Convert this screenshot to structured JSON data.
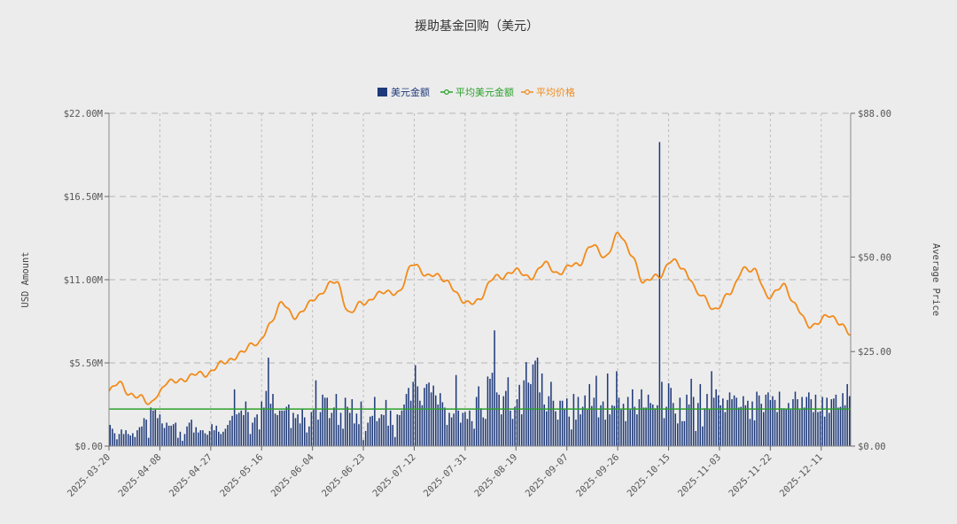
{
  "chart_data": {
    "type": "bar+line",
    "title": "援助基金回购（美元）",
    "legend": [
      {
        "name": "美元金额",
        "kind": "bar",
        "color": "#1f3a7a"
      },
      {
        "name": "平均美元金额",
        "kind": "line",
        "color": "#2ca02c"
      },
      {
        "name": "平均价格",
        "kind": "line",
        "color": "#f28b1a"
      }
    ],
    "ylabel_left": "USD Amount",
    "ylabel_right": "Average Price",
    "left_ticks": [
      "$0.00",
      "$5.50M",
      "$11.00M",
      "$16.50M",
      "$22.00M"
    ],
    "right_ticks": [
      "$0.00",
      "$25.00",
      "$50.00",
      "$88.00"
    ],
    "ylim_left": [
      0,
      22
    ],
    "ylim_right": [
      0,
      88
    ],
    "x_ticks": [
      "2025-03-20",
      "2025-04-08",
      "2025-04-27",
      "2025-05-16",
      "2025-06-04",
      "2025-06-23",
      "2025-07-12",
      "2025-07-31",
      "2025-08-19",
      "2025-09-07",
      "2025-09-26",
      "2025-10-15",
      "2025-11-03",
      "2025-11-22",
      "2025-12-11"
    ],
    "start_date": "2025-03-20",
    "end_date": "2025-12-22",
    "avg_usd_amount_m": 2.45,
    "price_anchors": [
      [
        0,
        14.5
      ],
      [
        4,
        16.5
      ],
      [
        8,
        14.0
      ],
      [
        12,
        12.5
      ],
      [
        15,
        11.0
      ],
      [
        18,
        14.0
      ],
      [
        22,
        16.5
      ],
      [
        28,
        18.0
      ],
      [
        35,
        19.0
      ],
      [
        42,
        21.5
      ],
      [
        50,
        25.0
      ],
      [
        55,
        27.0
      ],
      [
        60,
        32.0
      ],
      [
        65,
        38.0
      ],
      [
        70,
        34.0
      ],
      [
        78,
        40.0
      ],
      [
        85,
        43.5
      ],
      [
        90,
        35.0
      ],
      [
        95,
        38.0
      ],
      [
        100,
        40.0
      ],
      [
        108,
        41.0
      ],
      [
        114,
        48.0
      ],
      [
        120,
        45.0
      ],
      [
        126,
        44.0
      ],
      [
        133,
        37.5
      ],
      [
        138,
        39.0
      ],
      [
        145,
        45.0
      ],
      [
        152,
        46.0
      ],
      [
        158,
        45.0
      ],
      [
        163,
        48.0
      ],
      [
        168,
        46.0
      ],
      [
        175,
        48.0
      ],
      [
        180,
        53.0
      ],
      [
        185,
        50.0
      ],
      [
        190,
        56.0
      ],
      [
        195,
        51.0
      ],
      [
        200,
        43.0
      ],
      [
        205,
        45.0
      ],
      [
        210,
        49.0
      ],
      [
        214,
        47.0
      ],
      [
        217,
        45.0
      ],
      [
        220,
        40.0
      ],
      [
        226,
        36.5
      ],
      [
        232,
        40.0
      ],
      [
        237,
        47.5
      ],
      [
        241,
        46.0
      ],
      [
        246,
        40.0
      ],
      [
        252,
        42.0
      ],
      [
        256,
        38.0
      ],
      [
        262,
        31.0
      ],
      [
        268,
        35.0
      ],
      [
        273,
        32.0
      ],
      [
        278,
        30.0
      ],
      [
        280,
        28.5
      ]
    ],
    "usd_amount_m": [
      1.4,
      1.15,
      0.85,
      0.45,
      0.8,
      1.1,
      0.8,
      1.05,
      0.8,
      0.7,
      0.85,
      0.6,
      1.05,
      1.25,
      1.3,
      1.85,
      1.75,
      0.55,
      2.55,
      2.35,
      2.4,
      1.85,
      2.1,
      1.5,
      1.2,
      1.55,
      1.35,
      1.35,
      1.45,
      1.55,
      0.55,
      0.95,
      0.35,
      0.8,
      1.3,
      1.55,
      1.75,
      0.9,
      1.25,
      0.9,
      1.05,
      1.05,
      0.85,
      0.75,
      1.0,
      1.45,
      1.05,
      1.35,
      0.95,
      0.8,
      0.95,
      1.15,
      1.4,
      1.7,
      2.0,
      3.75,
      2.1,
      2.2,
      2.35,
      2.05,
      2.95,
      2.25,
      0.8,
      1.55,
      1.9,
      2.1,
      1.1,
      2.95,
      2.55,
      3.65,
      5.85,
      2.8,
      3.45,
      2.15,
      2.05,
      2.35,
      2.35,
      2.35,
      2.6,
      2.75,
      1.2,
      2.2,
      1.85,
      2.1,
      1.5,
      2.45,
      1.9,
      0.9,
      1.3,
      2.25,
      2.4,
      4.35,
      1.75,
      2.25,
      3.4,
      3.2,
      3.2,
      1.85,
      2.2,
      2.55,
      3.45,
      1.4,
      2.2,
      1.15,
      3.2,
      2.6,
      2.2,
      3.1,
      1.5,
      2.15,
      1.45,
      2.95,
      0.4,
      1.0,
      1.55,
      1.95,
      2.0,
      3.25,
      1.65,
      1.85,
      2.1,
      2.05,
      3.05,
      1.35,
      2.35,
      1.4,
      0.6,
      2.1,
      2.05,
      2.35,
      2.75,
      3.45,
      3.85,
      3.0,
      4.25,
      5.35,
      3.95,
      3.0,
      2.7,
      3.85,
      4.1,
      4.2,
      3.55,
      4.0,
      3.35,
      2.75,
      3.5,
      2.9,
      2.55,
      1.4,
      2.2,
      1.9,
      2.15,
      4.7,
      2.35,
      1.55,
      2.2,
      2.25,
      1.8,
      2.35,
      1.65,
      1.15,
      3.25,
      3.95,
      2.5,
      1.9,
      1.8,
      4.6,
      4.45,
      4.85,
      7.65,
      3.55,
      3.4,
      2.1,
      3.3,
      3.65,
      4.55,
      2.35,
      1.8,
      2.6,
      3.1,
      4.05,
      2.1,
      4.35,
      5.55,
      4.2,
      4.1,
      5.4,
      5.65,
      5.85,
      3.55,
      4.8,
      2.75,
      2.3,
      3.3,
      4.25,
      3.0,
      2.3,
      1.75,
      3.0,
      3.0,
      2.45,
      3.15,
      1.95,
      1.1,
      3.45,
      1.75,
      3.25,
      2.1,
      2.6,
      3.35,
      2.4,
      4.1,
      2.65,
      3.2,
      4.65,
      1.9,
      2.7,
      2.95,
      1.75,
      4.8,
      2.1,
      2.7,
      2.65,
      4.95,
      3.2,
      2.4,
      2.8,
      1.65,
      3.25,
      2.4,
      3.75,
      2.6,
      2.1,
      3.1,
      3.75,
      2.55,
      2.55,
      3.4,
      2.85,
      2.75,
      2.5,
      2.7,
      1.6,
      4.25,
      1.85,
      2.6,
      4.15,
      3.85,
      2.85,
      2.15,
      1.5,
      3.2,
      1.65,
      1.65,
      3.4,
      2.75,
      4.45,
      3.25,
      1.0,
      2.85,
      4.1,
      1.3,
      2.5,
      3.45,
      2.4,
      4.95,
      3.2,
      3.75,
      3.35,
      2.7,
      3.15,
      2.25,
      3.05,
      3.55,
      3.1,
      3.35,
      3.2,
      2.55,
      2.6,
      3.3,
      2.7,
      3.0,
      1.8,
      2.95,
      1.7,
      3.6,
      3.35,
      2.8,
      2.25,
      3.4,
      3.55,
      3.05,
      3.3,
      3.05,
      2.25,
      3.6,
      2.5,
      2.5,
      2.45,
      2.85,
      2.4,
      3.1,
      3.6,
      3.1,
      2.4,
      3.25,
      2.55,
      3.25,
      3.55,
      3.1,
      2.25,
      3.4,
      2.25,
      2.3,
      3.25,
      1.95,
      3.2,
      2.2,
      3.1,
      3.15,
      3.4,
      2.55,
      2.6,
      3.5,
      2.7,
      4.1,
      3.3
    ]
  }
}
